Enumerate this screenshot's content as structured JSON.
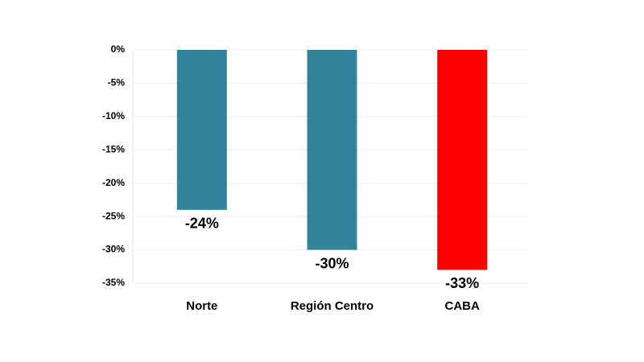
{
  "chart_data": {
    "type": "bar",
    "categories": [
      "Norte",
      "Región Centro",
      "CABA"
    ],
    "values": [
      -24,
      -30,
      -33
    ],
    "value_labels": [
      "-24%",
      "-30%",
      "-33%"
    ],
    "colors": [
      "#31849b",
      "#31849b",
      "#ff0000"
    ],
    "ylim": [
      -35,
      0
    ],
    "yticks": [
      {
        "value": 0,
        "label": "0%"
      },
      {
        "value": -5,
        "label": "-5%"
      },
      {
        "value": -10,
        "label": "-10%"
      },
      {
        "value": -15,
        "label": "-15%"
      },
      {
        "value": -20,
        "label": "-20%"
      },
      {
        "value": -25,
        "label": "-25%"
      },
      {
        "value": -30,
        "label": "-30%"
      },
      {
        "value": -35,
        "label": "-35%"
      }
    ],
    "grid": true
  }
}
